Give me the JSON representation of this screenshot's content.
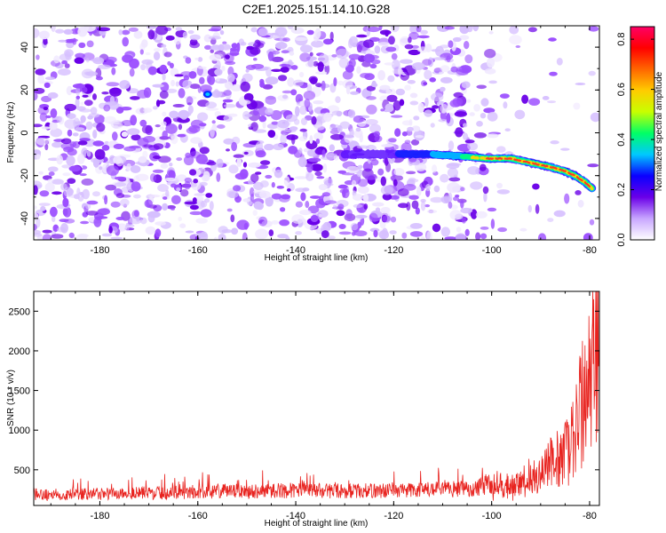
{
  "title": "C2E1.2025.151.14.10.G28",
  "colors": {
    "snr_line": "#e8231f",
    "track_core": "#ff3a1f",
    "speckle_dark": "#6a00e8",
    "speckle_mid": "#9b4dff",
    "speckle_light": "#d6bfff",
    "speckle_faint": "#efe6ff"
  },
  "chart_data": [
    {
      "type": "heatmap",
      "xlabel": "Height of straight line (km)",
      "ylabel": "Frequency (Hz)",
      "xlim": [
        -193.5,
        -78
      ],
      "ylim": [
        -50,
        50
      ],
      "xticks": [
        -180,
        -160,
        -140,
        -120,
        -100,
        -80
      ],
      "yticks": [
        -40,
        -20,
        0,
        20,
        40
      ],
      "track": {
        "x": [
          -130,
          -120,
          -113,
          -106,
          -101,
          -96,
          -92,
          -88,
          -85,
          -83,
          -81,
          -79.5
        ],
        "y": [
          -10,
          -10,
          -10,
          -11,
          -12,
          -12,
          -14,
          -16,
          -18,
          -20,
          -23,
          -26
        ]
      },
      "colorbar": {
        "label": "Normalized spectral amplitude",
        "ticks": [
          "0.0",
          "0.2",
          "0.4",
          "0.6",
          "0.8"
        ],
        "range": [
          0,
          0.85
        ],
        "colormap": [
          "#ffffff",
          "#c8a6ff",
          "#6a00e8",
          "#0a00ff",
          "#00c8ff",
          "#00ff66",
          "#c8ff00",
          "#ffcc00",
          "#ff6600",
          "#ff0000",
          "#ff0066"
        ]
      }
    },
    {
      "type": "line",
      "xlabel": "Height of straight line (km)",
      "ylabel": "SNR (10 * v/v)",
      "xlim": [
        -193.5,
        -78
      ],
      "ylim": [
        50,
        2750
      ],
      "xticks": [
        -180,
        -160,
        -140,
        -120,
        -100,
        -80
      ],
      "yticks": [
        500,
        1000,
        1500,
        2000,
        2500
      ],
      "series": [
        {
          "envelope_x": [
            -193.5,
            -180,
            -160,
            -150,
            -140,
            -130,
            -120,
            -110,
            -104,
            -100,
            -98,
            -96,
            -94,
            -92,
            -90,
            -88,
            -86,
            -84,
            -83,
            -82,
            -81,
            -80,
            -79,
            -78
          ],
          "envelope_y": [
            200,
            210,
            240,
            250,
            260,
            250,
            260,
            270,
            290,
            330,
            420,
            320,
            420,
            520,
            600,
            700,
            800,
            1000,
            1200,
            1500,
            1800,
            2000,
            2300,
            2500
          ]
        }
      ]
    }
  ]
}
